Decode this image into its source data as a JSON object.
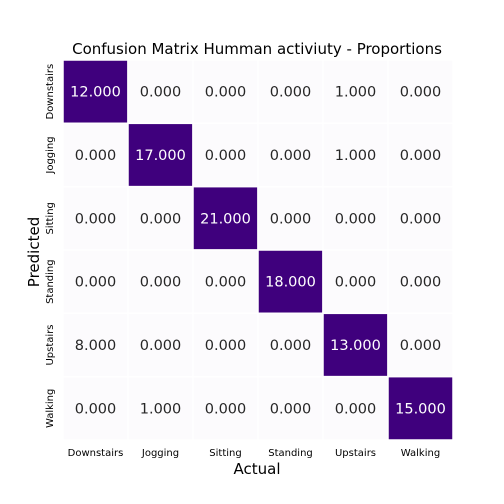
{
  "chart_data": {
    "type": "heatmap",
    "title": "Confusion Matrix Humman activiuty - Proportions",
    "xlabel": "Actual",
    "ylabel": "Predicted",
    "x_categories": [
      "Downstairs",
      "Jogging",
      "Sitting",
      "Standing",
      "Upstairs",
      "Walking"
    ],
    "y_categories": [
      "Downstairs",
      "Jogging",
      "Sitting",
      "Standing",
      "Upstairs",
      "Walking"
    ],
    "values": [
      [
        12,
        0,
        0,
        0,
        1,
        0
      ],
      [
        0,
        17,
        0,
        0,
        1,
        0
      ],
      [
        0,
        0,
        21,
        0,
        0,
        0
      ],
      [
        0,
        0,
        0,
        18,
        0,
        0
      ],
      [
        8,
        0,
        0,
        0,
        13,
        0
      ],
      [
        0,
        1,
        0,
        0,
        0,
        15
      ]
    ],
    "cell_labels": [
      [
        "12.000",
        "0.000",
        "0.000",
        "0.000",
        "1.000",
        "0.000"
      ],
      [
        "0.000",
        "17.000",
        "0.000",
        "0.000",
        "1.000",
        "0.000"
      ],
      [
        "0.000",
        "0.000",
        "21.000",
        "0.000",
        "0.000",
        "0.000"
      ],
      [
        "0.000",
        "0.000",
        "0.000",
        "18.000",
        "0.000",
        "0.000"
      ],
      [
        "8.000",
        "0.000",
        "0.000",
        "0.000",
        "13.000",
        "0.000"
      ],
      [
        "0.000",
        "1.000",
        "0.000",
        "0.000",
        "0.000",
        "15.000"
      ]
    ],
    "colors": {
      "high": "#3f007d",
      "low": "#fcfbfd",
      "text_on_dark": "#ffffff",
      "text_on_light": "#262626",
      "cell_border": "#ffffff"
    },
    "grid": false
  }
}
